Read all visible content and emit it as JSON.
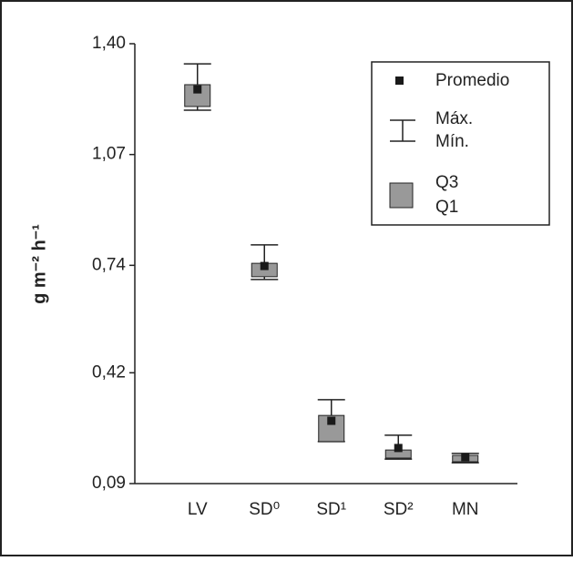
{
  "chart_data": {
    "type": "box",
    "y_label": "g m⁻² h⁻¹",
    "categories": [
      "LV",
      "SD⁰",
      "SD¹",
      "SD²",
      "MN"
    ],
    "max": [
      1.34,
      0.801,
      0.34,
      0.234,
      0.18
    ],
    "min": [
      1.202,
      0.698,
      0.215,
      0.163,
      0.152
    ],
    "q3": [
      1.278,
      0.746,
      0.293,
      0.19,
      0.174
    ],
    "q1": [
      1.213,
      0.706,
      0.215,
      0.166,
      0.155
    ],
    "mean": [
      1.264,
      0.738,
      0.277,
      0.196,
      0.169
    ],
    "box_color": "#999999",
    "mean_color": "#1a1a1a",
    "ylim": [
      0.09,
      1.4
    ],
    "yticks": [
      {
        "value": 0.09,
        "label": "0,09"
      },
      {
        "value": 0.42,
        "label": "0,42"
      },
      {
        "value": 0.74,
        "label": "0,74"
      },
      {
        "value": 1.07,
        "label": "1,07"
      },
      {
        "value": 1.4,
        "label": "1,40"
      }
    ],
    "legend": {
      "mean": "Promedio",
      "max": "Máx.",
      "min": "Mín.",
      "q3": "Q3",
      "q1": "Q1"
    }
  }
}
